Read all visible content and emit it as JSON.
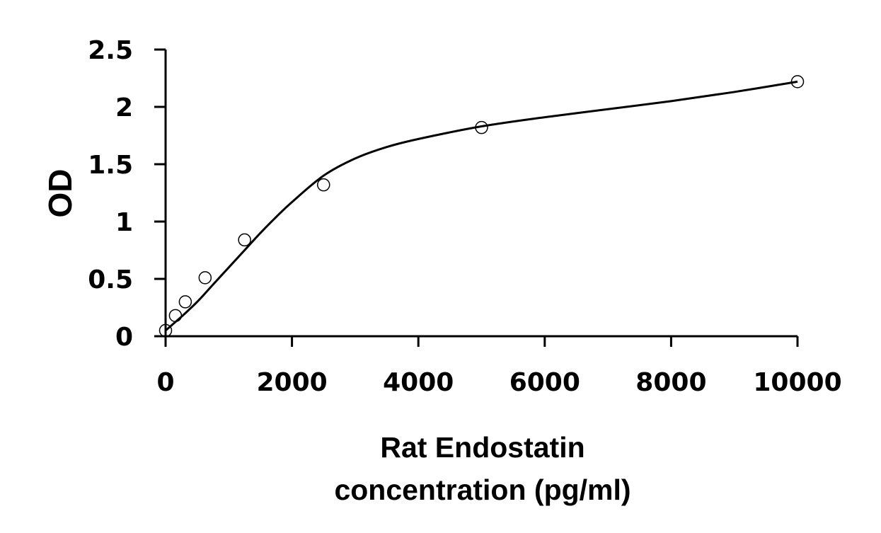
{
  "chart_data": {
    "type": "scatter",
    "title": "",
    "xlabel_lines": [
      "Rat Endostatin",
      "concentration (pg/ml)"
    ],
    "ylabel": "OD",
    "xlim": [
      0,
      10000
    ],
    "ylim": [
      0,
      2.5
    ],
    "x_ticks": [
      0,
      2000,
      4000,
      6000,
      8000,
      10000
    ],
    "x_tick_labels": [
      "0",
      "2000",
      "4000",
      "6000",
      "8000",
      "10000"
    ],
    "y_ticks": [
      0,
      0.5,
      1,
      1.5,
      2,
      2.5
    ],
    "y_tick_labels": [
      "0",
      "0.5",
      "1",
      "1.5",
      "2",
      "2.5"
    ],
    "grid": false,
    "legend": "none",
    "series": [
      {
        "marker": "open-circle",
        "x": [
          0,
          156,
          312,
          625,
          1250,
          2500,
          5000,
          10000
        ],
        "y": [
          0.05,
          0.18,
          0.3,
          0.51,
          0.84,
          1.32,
          1.82,
          2.22
        ]
      }
    ],
    "fit_curve": {
      "style": "solid black line",
      "x": [
        0,
        250,
        500,
        750,
        1000,
        1250,
        1500,
        1750,
        2000,
        2500,
        3000,
        3500,
        4000,
        5000,
        6000,
        7000,
        8000,
        9000,
        10000
      ],
      "y": [
        0.05,
        0.17,
        0.3,
        0.45,
        0.6,
        0.75,
        0.9,
        1.04,
        1.17,
        1.4,
        1.55,
        1.65,
        1.72,
        1.83,
        1.91,
        1.98,
        2.05,
        2.13,
        2.22
      ]
    }
  }
}
